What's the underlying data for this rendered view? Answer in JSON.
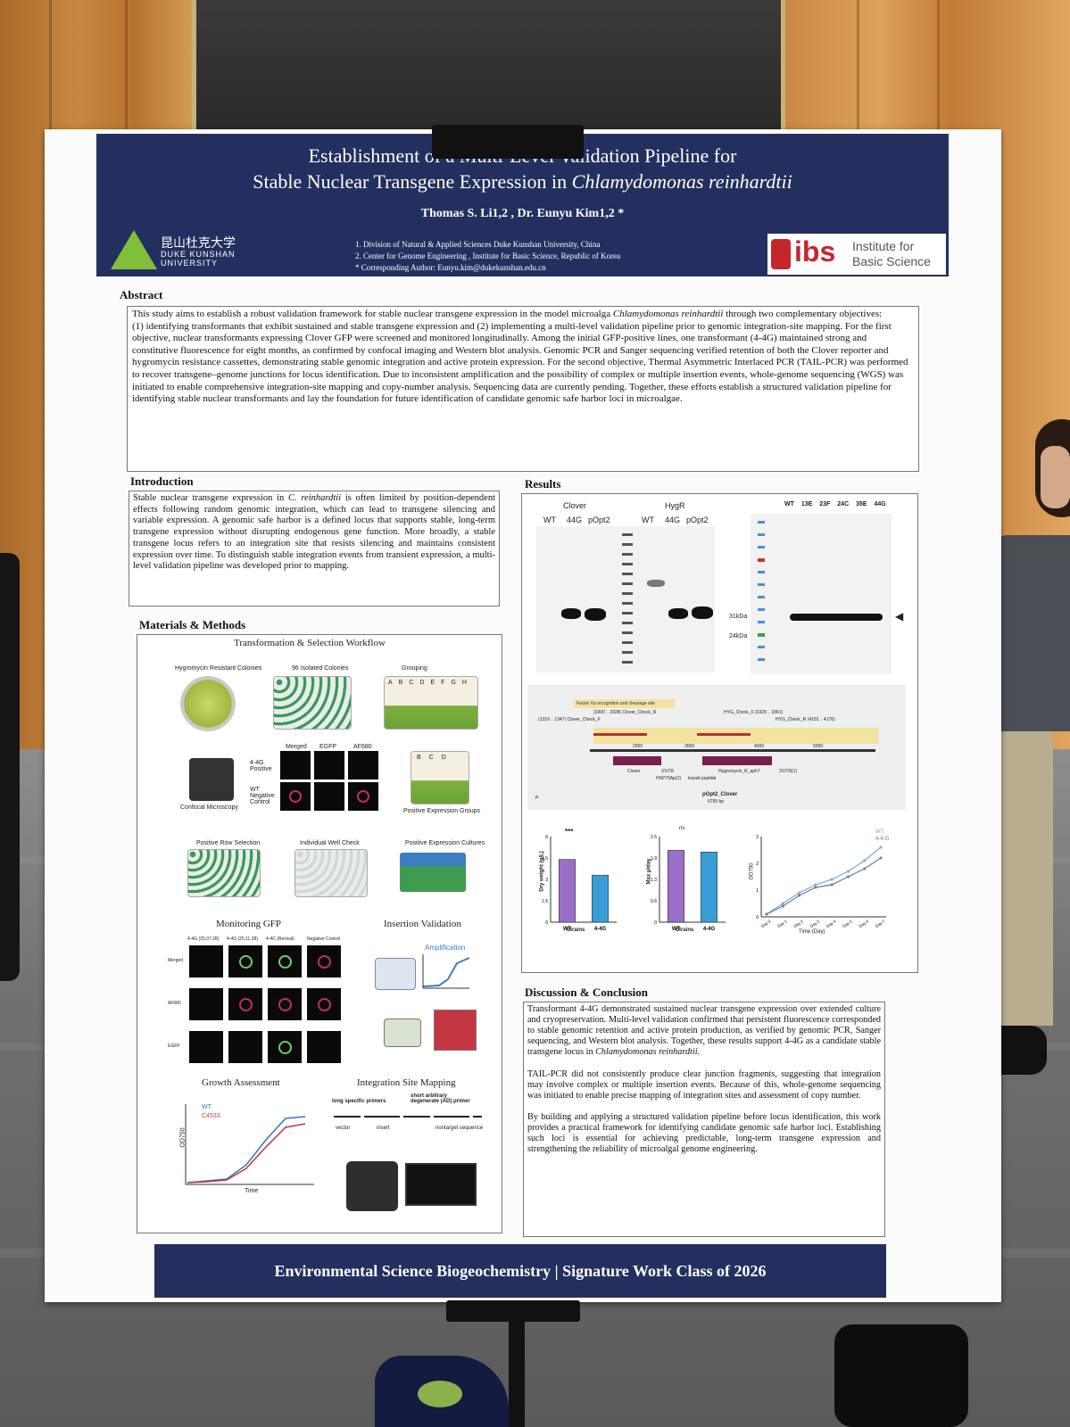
{
  "poster": {
    "title_line1": "Establishment of a Multi-Level Validation Pipeline for",
    "title_line2_pre": "Stable Nuclear Transgene Expression in ",
    "title_line2_species": "Chlamydomonas reinhardtii",
    "authors": "Thomas S. Li1,2 , Dr. Eunyu Kim1,2 *",
    "affiliations": [
      "1.   Division of Natural & Applied Sciences Duke Kunshan University, China",
      "2.   Center for Genome Engineering , Institute for Basic Science, Republic of Korea",
      "*    Corresponding Author:   Eunyu.kim@dukekunshan.edu.cn"
    ],
    "logo_left_cn": "昆山杜克大学",
    "logo_left_en1": "DUKE KUNSHAN",
    "logo_left_en2": "UNIVERSITY",
    "logo_right_abbr": "ibs",
    "logo_right_name1": "Institute for",
    "logo_right_name2": "Basic Science",
    "footer": "Environmental Science Biogeochemistry | Signature Work Class of 2026"
  },
  "abstract": {
    "heading": "Abstract",
    "p1_pre": "This study aims to establish a robust validation framework for stable nuclear transgene expression in the model microalga ",
    "p1_species": "Chlamydomonas reinhardtii",
    "p1_post": " through two complementary objectives:",
    "p2": "(1) identifying transformants that exhibit sustained and stable transgene expression and (2) implementing a multi-level validation pipeline prior to genomic integration-site mapping. For the first objective, nuclear transformants expressing Clover GFP were screened and monitored longitudinally. Among the initial GFP-positive lines, one transformant (4-4G) maintained strong and constitutive fluorescence for eight months, as confirmed by confocal imaging and Western blot analysis. Genomic PCR and Sanger sequencing verified retention of both the Clover reporter and hygromycin resistance cassettes, demonstrating stable genomic integration and active protein expression. For the second objective, Thermal Asymmetric Interlaced PCR (TAIL-PCR) was performed to recover transgene–genome junctions for locus identification. Due to inconsistent amplification and the possibility of complex or multiple insertion events, whole-genome sequencing (WGS) was initiated to enable comprehensive integration-site mapping and copy-number analysis. Sequencing data are currently pending. Together, these efforts establish a structured validation pipeline for identifying stable nuclear transformants and lay the foundation for future identification of candidate genomic safe harbor loci in microalgae."
  },
  "introduction": {
    "heading": "Introduction",
    "pre": "Stable nuclear transgene expression in ",
    "species": "C. reinhardtii",
    "post": " is often limited by position-dependent effects following random genomic integration, which can lead to transgene silencing and variable expression. A genomic safe harbor is a defined locus that supports stable, long-term transgene expression without disrupting endogenous gene function. More broadly, a stable transgene locus refers to an integration site that resists silencing and maintains consistent expression over time. To distinguish stable integration events from transient expression, a multi-level validation pipeline was developed prior to mapping."
  },
  "methods": {
    "heading": "Materials & Methods",
    "workflow_title": "Transformation & Selection Workflow",
    "plate_labels": [
      "Hygromycin Resistant Colonies",
      "96 Isolated Colonies",
      "Grouping"
    ],
    "group_letters": [
      "A",
      "B",
      "C",
      "D",
      "E",
      "F",
      "G",
      "H"
    ],
    "confocal_label": "Confocal Microscopy",
    "conf_cols": [
      "Merged",
      "EGFP",
      "AF680"
    ],
    "conf_rows": [
      "4-4G Positive",
      "WT Negative Control"
    ],
    "positive_groups_label": "Positive Expression Groups",
    "positive_letters": [
      "B",
      "C",
      "D"
    ],
    "row_selection_labels": [
      "Positive Row Selection",
      "Individual Well Check",
      "Positive Expression Cultures"
    ],
    "monitoring_title": "Monitoring GFP",
    "monitor_cols": [
      "4-4G (25.07.28)",
      "4-4G (25.11.28)",
      "4-4C (Revival)",
      "Negative Control"
    ],
    "monitor_rows": [
      "Merged",
      "AF680",
      "EGFP"
    ],
    "insertion_title": "Insertion Validation",
    "amplification_label": "Amplification",
    "growth_title": "Growth Assessment",
    "growth_legend": [
      "WT",
      "C4533"
    ],
    "growth_ylabel": "OD750",
    "growth_xlabel": "Time",
    "mapping_title": "Integration Site Mapping",
    "mapping_labels": [
      "long specific primers",
      "short arbitrary degenerate (AD) primer",
      "vector",
      "insert",
      "nontarget sequence"
    ]
  },
  "results": {
    "heading": "Results",
    "gel1_label": "Clover",
    "gel2_label": "HygR",
    "lanes": [
      "WT",
      "44G",
      "pOpt2"
    ],
    "wb_lanes": [
      "WT",
      "13E",
      "23F",
      "24C",
      "35E",
      "44G"
    ],
    "wb_markers": [
      "31kDa",
      "24kDa"
    ],
    "map_feature_box": "Factor Xa recognition and cleavage site",
    "map_primers": [
      "(1319 .. 1347) Clover_Check_F",
      "(3300 .. 3328) Clover_Check_R",
      "HYG_Check_F (3329 .. 3361)",
      "HYG_Check_R (4152 .. 4176)"
    ],
    "map_features": [
      "Clover",
      "3'UTR",
      "HSP70Ap(1)",
      "transit peptide",
      "Hygromycin_R_aph7",
      "3'UTR(1)"
    ],
    "map_positions": [
      "2000",
      "3000",
      "4000",
      "5000"
    ],
    "map_name": "pOpt2_Clover",
    "map_size": "6795 bp",
    "bar1_ylabel": "Dry weight (g/L)",
    "bar1_sig": "***",
    "bar2_ylabel": "Max μ/day",
    "bar2_sig": "ns",
    "bar_xlabel": "Strains",
    "bar_categories": [
      "WT",
      "4-4G"
    ],
    "line_ylabel": "OD750",
    "line_xlabel": "Time (Day)",
    "line_legend": [
      "WT",
      "4-4-G"
    ],
    "line_x": [
      "Day 0",
      "Day 1",
      "Day 2",
      "Day 3",
      "Day 4",
      "Day 5",
      "Day 6",
      "Day 7"
    ]
  },
  "chart_data": [
    {
      "type": "bar",
      "categories": [
        "WT",
        "4-4G"
      ],
      "values": [
        4.4,
        3.3
      ],
      "ylabel": "Dry weight (g/L)",
      "xlabel": "Strains",
      "ylim": [
        0,
        6
      ]
    },
    {
      "type": "bar",
      "categories": [
        "WT",
        "4-4G"
      ],
      "values": [
        2.1,
        2.05
      ],
      "ylabel": "Max μ/day",
      "xlabel": "Strains",
      "ylim": [
        0,
        2.5
      ]
    },
    {
      "type": "line",
      "x": [
        "Day 0",
        "Day 1",
        "Day 2",
        "Day 3",
        "Day 4",
        "Day 5",
        "Day 6",
        "Day 7"
      ],
      "series": [
        {
          "name": "WT",
          "values": [
            0.1,
            0.5,
            0.9,
            1.2,
            1.4,
            1.7,
            2.1,
            2.6
          ]
        },
        {
          "name": "4-4-G",
          "values": [
            0.1,
            0.4,
            0.8,
            1.1,
            1.2,
            1.5,
            1.8,
            2.2
          ]
        }
      ],
      "ylabel": "OD750",
      "xlabel": "Time (Day)",
      "ylim": [
        0,
        3
      ]
    }
  ],
  "discussion": {
    "heading": "Discussion & Conclusion",
    "p1_pre": "Transformant 4-4G demonstrated sustained nuclear transgene expression over extended culture and cryopreservation. Multi-level validation confirmed that persistent fluorescence corresponded to stable genomic retention and active protein production, as verified by genomic PCR, Sanger sequencing, and Western blot analysis. Together, these results support 4-4G as a candidate stable transgene locus in ",
    "p1_species": "Chlamydomonas reinhardtii.",
    "p2": "TAIL-PCR did not consistently produce clear junction fragments, suggesting that integration may involve complex or multiple insertion events. Because of this, whole-genome sequencing was initiated to enable precise mapping of integration sites and assessment of copy number.",
    "p3": "By building and applying a structured validation pipeline before locus identification, this work provides a practical framework for identifying candidate genomic safe harbor loci. Establishing such loci is essential for achieving predictable, long-term transgene expression and strengthening the reliability of microalgal genome engineering."
  }
}
